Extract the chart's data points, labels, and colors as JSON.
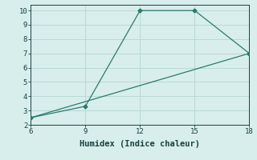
{
  "xlabel": "Humidex (Indice chaleur)",
  "line1_x": [
    6,
    9,
    12,
    15,
    18
  ],
  "line1_y": [
    2.5,
    3.3,
    10.0,
    10.0,
    7.0
  ],
  "line2_x": [
    6,
    18
  ],
  "line2_y": [
    2.5,
    7.0
  ],
  "line_color": "#2a7a6e",
  "marker": "D",
  "marker_size": 2.5,
  "xlim": [
    6,
    18
  ],
  "ylim": [
    2,
    10.4
  ],
  "xticks": [
    6,
    9,
    12,
    15,
    18
  ],
  "yticks": [
    2,
    3,
    4,
    5,
    6,
    7,
    8,
    9,
    10
  ],
  "bg_color": "#d8eeec",
  "grid_color": "#b8d8d4",
  "tick_fontsize": 6.5,
  "xlabel_fontsize": 7.5
}
